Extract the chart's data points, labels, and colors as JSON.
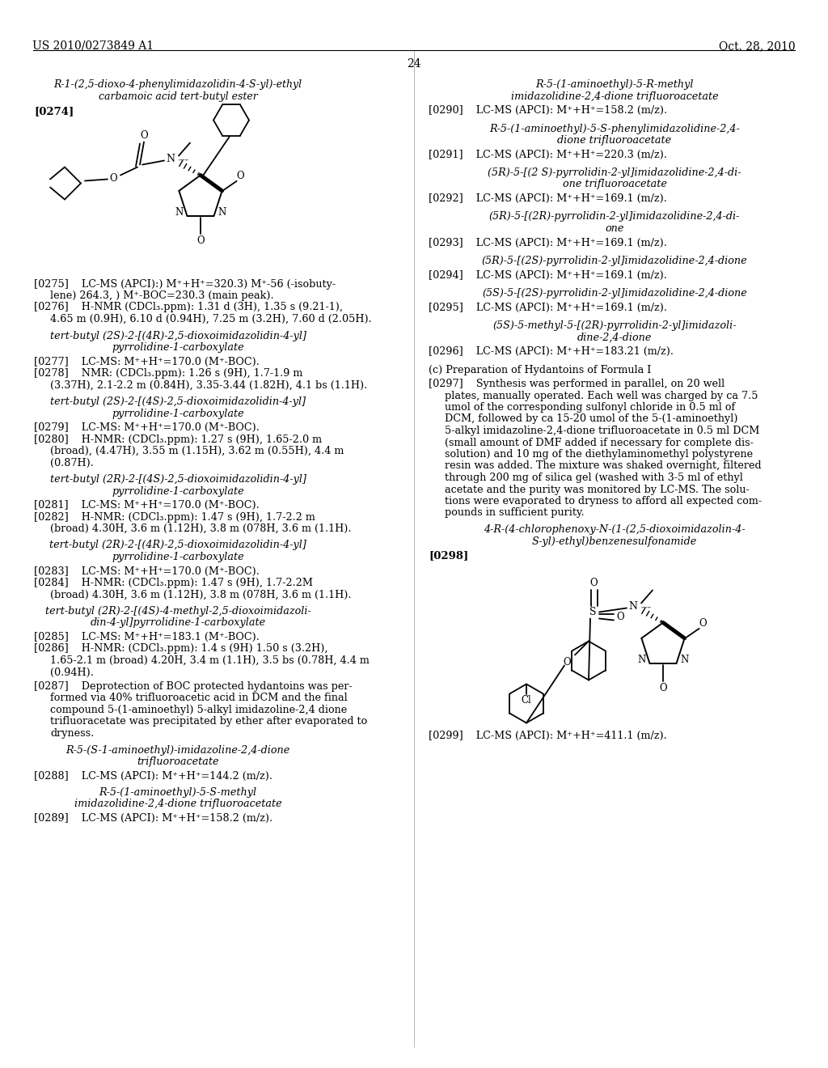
{
  "background_color": "#ffffff",
  "page_number": "24",
  "header_left": "US 2010/0273849 A1",
  "header_right": "Oct. 28, 2010",
  "content": {
    "title1_line1": "R-1-(2,5-dioxo-4-phenylimidazolidin-4-S-yl)-ethyl",
    "title1_line2": "carbamoic acid tert-butyl ester",
    "ref274": "[0274]",
    "p275_line1": "[0275]    LC-MS (APCI):) M⁺+H⁺=320.3) M⁺-56 (-isobuty-",
    "p275_line2": "lene) 264.3, ) M⁺-BOC=230.3 (main peak).",
    "p276_line1": "[0276]    H-NMR (CDCl₃.ppm): 1.31 d (3H), 1.35 s (9.21-1),",
    "p276_line2": "4.65 m (0.9H), 6.10 d (0.94H), 7.25 m (3.2H), 7.60 d (2.05H).",
    "s277_line1": "tert-butyl (2S)-2-[(4R)-2,5-dioxoimidazolidin-4-yl]",
    "s277_line2": "pyrrolidine-1-carboxylate",
    "p277": "[0277]    LC-MS: M⁺+H⁺=170.0 (M⁺-BOC).",
    "p278_line1": "[0278]    NMR: (CDCl₃.ppm): 1.26 s (9H), 1.7-1.9 m",
    "p278_line2": "(3.37H), 2.1-2.2 m (0.84H), 3.35-3.44 (1.82H), 4.1 bs (1.1H).",
    "s279_line1": "tert-butyl (2S)-2-[(4S)-2,5-dioxoimidazolidin-4-yl]",
    "s279_line2": "pyrrolidine-1-carboxylate",
    "p279": "[0279]    LC-MS: M⁺+H⁺=170.0 (M⁺-BOC).",
    "p280_line1": "[0280]    H-NMR: (CDCl₃.ppm): 1.27 s (9H), 1.65-2.0 m",
    "p280_line2": "(broad), (4.47H), 3.55 m (1.15H), 3.62 m (0.55H), 4.4 m",
    "p280_line3": "(0.87H).",
    "s281_line1": "tert-butyl (2R)-2-[(4S)-2,5-dioxoimidazolidin-4-yl]",
    "s281_line2": "pyrrolidine-1-carboxylate",
    "p281": "[0281]    LC-MS: M⁺+H⁺=170.0 (M⁺-BOC).",
    "p282_line1": "[0282]    H-NMR: (CDCl₃.ppm): 1.47 s (9H), 1.7-2.2 m",
    "p282_line2": "(broad) 4.30H, 3.6 m (1.12H), 3.8 m (078H, 3.6 m (1.1H).",
    "s283_line1": "tert-butyl (2R)-2-[(4R)-2,5-dioxoimidazolidin-4-yl]",
    "s283_line2": "pyrrolidine-1-carboxylate",
    "p283": "[0283]    LC-MS: M⁺+H⁺=170.0 (M⁺-BOC).",
    "p284_line1": "[0284]    H-NMR: (CDCl₃.ppm): 1.47 s (9H), 1.7-2.2M",
    "p284_line2": "(broad) 4.30H, 3.6 m (1.12H), 3.8 m (078H, 3.6 m (1.1H).",
    "s285_line1": "tert-butyl (2R)-2-[(4S)-4-methyl-2,5-dioxoimidazoli-",
    "s285_line2": "din-4-yl]pyrrolidine-1-carboxylate",
    "p285": "[0285]    LC-MS: M⁺+H⁺=183.1 (M⁺-BOC).",
    "p286_line1": "[0286]    H-NMR: (CDCl₃.ppm): 1.4 s (9H) 1.50 s (3.2H),",
    "p286_line2": "1.65-2.1 m (broad) 4.20H, 3.4 m (1.1H), 3.5 bs (0.78H, 4.4 m",
    "p286_line3": "(0.94H).",
    "p287_line1": "[0287]    Deprotection of BOC protected hydantoins was per-",
    "p287_line2": "formed via 40% trifluoroacetic acid in DCM and the final",
    "p287_line3": "compound 5-(1-aminoethyl) 5-alkyl imidazoline-2,4 dione",
    "p287_line4": "trifluoracetate was precipitated by ether after evaporated to",
    "p287_line5": "dryness.",
    "s288_line1": "R-5-(S-1-aminoethyl)-imidazoline-2,4-dione",
    "s288_line2": "trifluoroacetate",
    "p288": "[0288]    LC-MS (APCI): M⁺+H⁺=144.2 (m/z).",
    "s289_line1": "R-5-(1-aminoethyl)-5-S-methyl",
    "s289_line2": "imidazolidine-2,4-dione trifluoroacetate",
    "p289": "[0289]    LC-MS (APCI): M⁺+H⁺=158.2 (m/z).",
    "r_s290_line1": "R-5-(1-aminoethyl)-5-R-methyl",
    "r_s290_line2": "imidazolidine-2,4-dione trifluoroacetate",
    "r_p290": "[0290]    LC-MS (APCI): M⁺+H⁺=158.2 (m/z).",
    "r_s291_line1": "R-5-(1-aminoethyl)-5-S-phenylimidazolidine-2,4-",
    "r_s291_line2": "dione trifluoroacetate",
    "r_p291": "[0291]    LC-MS (APCI): M⁺+H⁺=220.3 (m/z).",
    "r_s292_line1": "(5R)-5-[(2 S)-pyrrolidin-2-yl]imidazolidine-2,4-di-",
    "r_s292_line2": "one trifluoroacetate",
    "r_p292": "[0292]    LC-MS (APCI): M⁺+H⁺=169.1 (m/z).",
    "r_s293_line1": "(5R)-5-[(2R)-pyrrolidin-2-yl]imidazolidine-2,4-di-",
    "r_s293_line2": "one",
    "r_p293": "[0293]    LC-MS (APCI): M⁺+H⁺=169.1 (m/z).",
    "r_s294": "(5R)-5-[(2S)-pyrrolidin-2-yl]imidazolidine-2,4-dione",
    "r_p294": "[0294]    LC-MS (APCI): M⁺+H⁺=169.1 (m/z).",
    "r_s295": "(5S)-5-[(2S)-pyrrolidin-2-yl]imidazolidine-2,4-dione",
    "r_p295": "[0295]    LC-MS (APCI): M⁺+H⁺=169.1 (m/z).",
    "r_s296_line1": "(5S)-5-methyl-5-[(2R)-pyrrolidin-2-yl]imidazoli-",
    "r_s296_line2": "dine-2,4-dione",
    "r_p296": "[0296]    LC-MS (APCI): M⁺+H⁺=183.21 (m/z).",
    "r_sc": "(c) Preparation of Hydantoins of Formula I",
    "r_p297_line1": "[0297]    Synthesis was performed in parallel, on 20 well",
    "r_p297_line2": "plates, manually operated. Each well was charged by ca 7.5",
    "r_p297_line3": "umol of the corresponding sulfonyl chloride in 0.5 ml of",
    "r_p297_line4": "DCM, followed by ca 15-20 umol of the 5-(1-aminoethyl)",
    "r_p297_line5": "5-alkyl imidazoline-2,4-dione trifluoroacetate in 0.5 ml DCM",
    "r_p297_line6": "(small amount of DMF added if necessary for complete dis-",
    "r_p297_line7": "solution) and 10 mg of the diethylaminomethyl polystyrene",
    "r_p297_line8": "resin was added. The mixture was shaked overnight, filtered",
    "r_p297_line9": "through 200 mg of silica gel (washed with 3-5 ml of ethyl",
    "r_p297_line10": "acetate and the purity was monitored by LC-MS. The solu-",
    "r_p297_line11": "tions were evaporated to dryness to afford all expected com-",
    "r_p297_line12": "pounds in sufficient purity.",
    "r_s298_line1": "4-R-(4-chlorophenoxy-N-(1-(2,5-dioxoimidazolin-4-",
    "r_s298_line2": "S-yl)-ethyl)benzenesulfonamide",
    "ref298": "[0298]",
    "r_p299": "[0299]    LC-MS (APCI): M⁺+H⁺=411.1 (m/z)."
  }
}
